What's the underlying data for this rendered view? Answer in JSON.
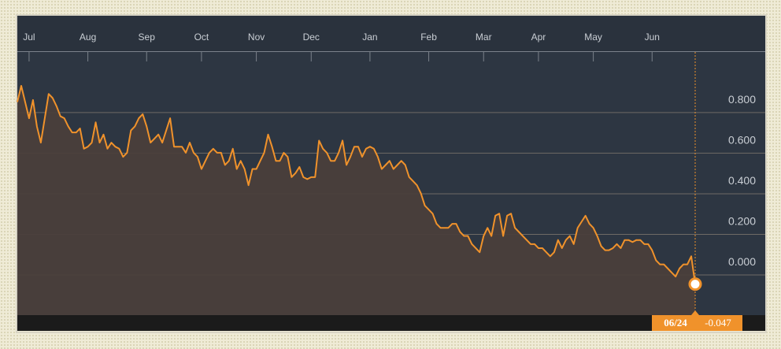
{
  "chart_data": {
    "type": "area-line",
    "color": "#f0922b",
    "values": [
      0.85,
      0.93,
      0.85,
      0.77,
      0.86,
      0.73,
      0.65,
      0.77,
      0.89,
      0.87,
      0.83,
      0.78,
      0.77,
      0.73,
      0.7,
      0.7,
      0.72,
      0.62,
      0.63,
      0.65,
      0.75,
      0.65,
      0.69,
      0.62,
      0.65,
      0.63,
      0.62,
      0.58,
      0.6,
      0.71,
      0.73,
      0.77,
      0.79,
      0.73,
      0.65,
      0.67,
      0.69,
      0.65,
      0.71,
      0.77,
      0.63,
      0.63,
      0.63,
      0.6,
      0.65,
      0.6,
      0.58,
      0.52,
      0.56,
      0.6,
      0.62,
      0.6,
      0.6,
      0.54,
      0.56,
      0.62,
      0.52,
      0.56,
      0.52,
      0.44,
      0.52,
      0.52,
      0.56,
      0.6,
      0.69,
      0.63,
      0.56,
      0.56,
      0.6,
      0.58,
      0.48,
      0.5,
      0.53,
      0.48,
      0.47,
      0.48,
      0.48,
      0.66,
      0.62,
      0.6,
      0.56,
      0.56,
      0.6,
      0.66,
      0.54,
      0.58,
      0.63,
      0.63,
      0.58,
      0.62,
      0.63,
      0.62,
      0.58,
      0.52,
      0.54,
      0.56,
      0.52,
      0.54,
      0.56,
      0.54,
      0.48,
      0.46,
      0.44,
      0.4,
      0.34,
      0.32,
      0.3,
      0.25,
      0.23,
      0.23,
      0.23,
      0.25,
      0.25,
      0.21,
      0.19,
      0.19,
      0.15,
      0.13,
      0.11,
      0.19,
      0.23,
      0.19,
      0.29,
      0.3,
      0.19,
      0.29,
      0.3,
      0.23,
      0.21,
      0.19,
      0.17,
      0.15,
      0.15,
      0.13,
      0.13,
      0.11,
      0.09,
      0.11,
      0.17,
      0.13,
      0.17,
      0.19,
      0.15,
      0.23,
      0.26,
      0.29,
      0.25,
      0.23,
      0.19,
      0.14,
      0.12,
      0.12,
      0.13,
      0.15,
      0.13,
      0.17,
      0.17,
      0.16,
      0.17,
      0.17,
      0.15,
      0.15,
      0.12,
      0.07,
      0.05,
      0.05,
      0.03,
      0.01,
      -0.01,
      0.03,
      0.05,
      0.05,
      0.09,
      -0.047
    ],
    "xticks": [
      {
        "value": 3,
        "label": "Jul"
      },
      {
        "value": 18,
        "label": "Aug"
      },
      {
        "value": 33,
        "label": "Sep"
      },
      {
        "value": 47,
        "label": "Oct"
      },
      {
        "value": 61,
        "label": "Nov"
      },
      {
        "value": 75,
        "label": "Dec"
      },
      {
        "value": 90,
        "label": "Jan"
      },
      {
        "value": 105,
        "label": "Feb"
      },
      {
        "value": 119,
        "label": "Mar"
      },
      {
        "value": 133,
        "label": "Apr"
      },
      {
        "value": 147,
        "label": "May"
      },
      {
        "value": 162,
        "label": "Jun"
      }
    ],
    "ylim": [
      -0.2,
      1.05
    ],
    "yticks": [
      {
        "value": 0,
        "label": "0.000"
      },
      {
        "value": 0.2,
        "label": "0.200"
      },
      {
        "value": 0.4,
        "label": "0.400"
      },
      {
        "value": 0.6,
        "label": "0.600"
      },
      {
        "value": 0.8,
        "label": "0.800"
      }
    ],
    "grid": true,
    "marker_label": {
      "date": "06/24",
      "value": -0.047
    }
  }
}
